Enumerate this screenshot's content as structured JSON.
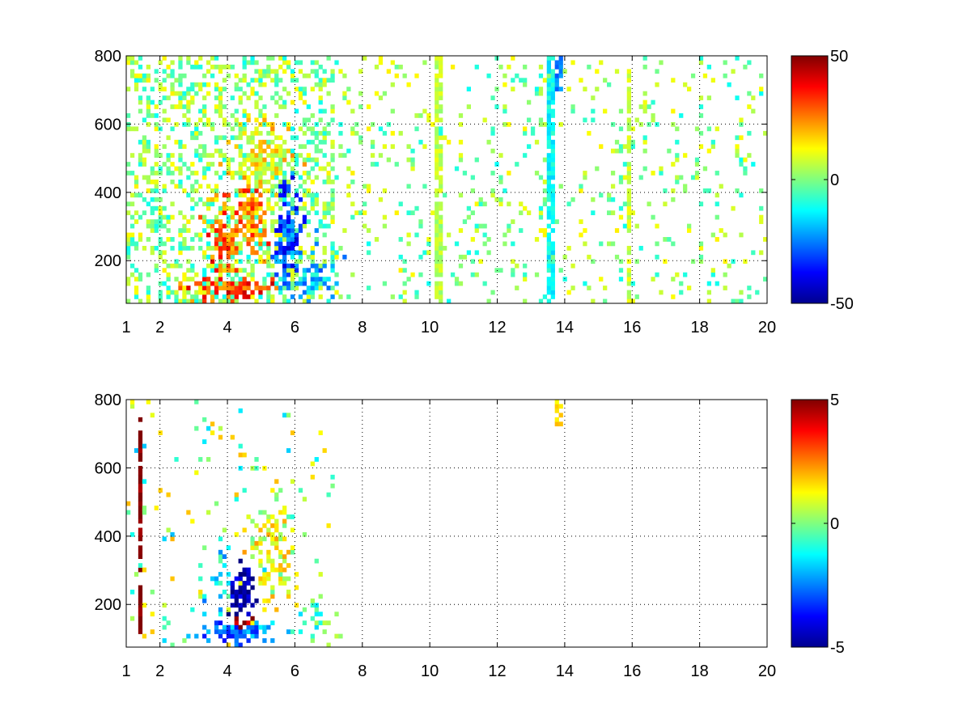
{
  "chart_data": [
    {
      "type": "heatmap",
      "title": "",
      "xlabel": "",
      "ylabel": "",
      "xlim": [
        1,
        20
      ],
      "ylim": [
        75,
        800
      ],
      "x_ticks": [
        1,
        2,
        4,
        6,
        8,
        10,
        12,
        14,
        16,
        18,
        20
      ],
      "y_ticks": [
        200,
        400,
        600,
        800
      ],
      "grid": true,
      "colormap": "jet",
      "colorbar": {
        "range": [
          -50,
          50
        ],
        "ticks": [
          50,
          0,
          -50
        ]
      },
      "blobs": [
        {
          "x": 4.2,
          "y": 120,
          "sx": 1.1,
          "sy": 30,
          "value": 32,
          "density": 0.95
        },
        {
          "x": 4.0,
          "y": 270,
          "sx": 0.5,
          "sy": 90,
          "value": 28,
          "density": 0.95
        },
        {
          "x": 4.7,
          "y": 330,
          "sx": 0.4,
          "sy": 110,
          "value": 24,
          "density": 0.9
        },
        {
          "x": 5.8,
          "y": 260,
          "sx": 0.35,
          "sy": 150,
          "value": -30,
          "density": 0.9
        },
        {
          "x": 6.6,
          "y": 150,
          "sx": 0.5,
          "sy": 70,
          "value": -18,
          "density": 0.7
        },
        {
          "x": 5.0,
          "y": 500,
          "sx": 0.7,
          "sy": 120,
          "value": 12,
          "density": 0.6
        }
      ],
      "streaks": [
        {
          "x": 13.6,
          "y0": 75,
          "y1": 800,
          "value": -12
        },
        {
          "x": 13.85,
          "y0": 700,
          "y1": 800,
          "value": -25
        },
        {
          "x": 15.9,
          "y0": 75,
          "y1": 800,
          "value": 8
        },
        {
          "x": 10.3,
          "y0": 75,
          "y1": 800,
          "value": 6
        }
      ],
      "background": {
        "x_dense_until": 7.2,
        "density_dense": 0.35,
        "density_sparse": 0.1,
        "value_range": [
          -12,
          14
        ]
      }
    },
    {
      "type": "heatmap",
      "title": "",
      "xlabel": "",
      "ylabel": "",
      "xlim": [
        1,
        20
      ],
      "ylim": [
        75,
        800
      ],
      "x_ticks": [
        1,
        2,
        4,
        6,
        8,
        10,
        12,
        14,
        16,
        18,
        20
      ],
      "y_ticks": [
        200,
        400,
        600,
        800
      ],
      "grid": true,
      "colormap": "jet",
      "colorbar": {
        "range": [
          -5,
          5
        ],
        "ticks": [
          5,
          0,
          -5
        ]
      },
      "blobs": [
        {
          "x": 4.2,
          "y": 120,
          "sx": 1.0,
          "sy": 25,
          "value": -2.5,
          "density": 0.95
        },
        {
          "x": 4.5,
          "y": 240,
          "sx": 0.4,
          "sy": 60,
          "value": -4.8,
          "density": 0.9
        },
        {
          "x": 4.4,
          "y": 140,
          "sx": 0.3,
          "sy": 25,
          "value": 4.5,
          "density": 0.85
        },
        {
          "x": 5.3,
          "y": 350,
          "sx": 0.5,
          "sy": 120,
          "value": 1.0,
          "density": 0.7
        },
        {
          "x": 6.6,
          "y": 170,
          "sx": 0.35,
          "sy": 50,
          "value": -0.5,
          "density": 0.6
        },
        {
          "x": 3.8,
          "y": 280,
          "sx": 0.4,
          "sy": 70,
          "value": -1.5,
          "density": 0.6
        }
      ],
      "streaks": [
        {
          "x": 1.4,
          "y0": 120,
          "y1": 750,
          "value": 5
        },
        {
          "x": 13.85,
          "y0": 720,
          "y1": 800,
          "value": 1.5
        }
      ],
      "background": {
        "x_dense_until": 7.2,
        "density_dense": 0.05,
        "density_sparse": 0.0,
        "value_range": [
          -2,
          2
        ]
      }
    }
  ]
}
